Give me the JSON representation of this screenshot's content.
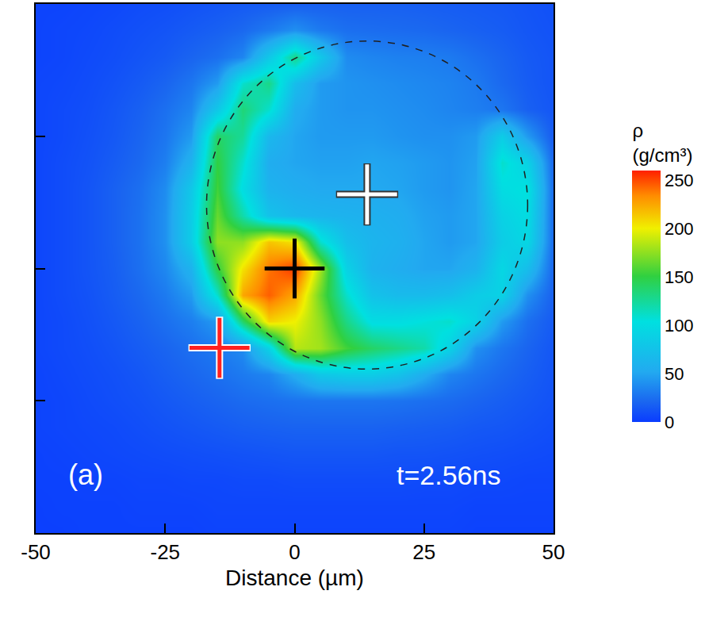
{
  "chart_data": {
    "type": "heatmap",
    "xlabel": "Distance (µm)",
    "panel_label": "(a)",
    "annotation": "t=2.56ns",
    "xlim": [
      -50,
      50
    ],
    "ylim": [
      -50,
      50
    ],
    "xticks": [
      -50,
      -25,
      0,
      25,
      50
    ],
    "yticks": [
      -50,
      -25,
      0,
      25,
      50
    ],
    "tick_labels": "x",
    "x": [
      -50,
      -45,
      -40,
      -35,
      -30,
      -25,
      -20,
      -15,
      -10,
      -5,
      0,
      5,
      10,
      15,
      20,
      25,
      30,
      35,
      40,
      45,
      50
    ],
    "y": [
      50,
      45,
      40,
      35,
      30,
      25,
      20,
      15,
      10,
      5,
      0,
      -5,
      -10,
      -15,
      -20,
      -25,
      -30,
      -35,
      -40,
      -45,
      -50
    ],
    "z": [
      [
        4,
        4,
        5,
        6,
        8,
        9,
        11,
        13,
        15,
        16,
        17,
        18,
        18,
        18,
        18,
        17,
        16,
        15,
        14,
        12,
        10
      ],
      [
        4,
        5,
        6,
        8,
        10,
        12,
        15,
        18,
        22,
        30,
        40,
        30,
        25,
        24,
        23,
        22,
        20,
        18,
        16,
        13,
        11
      ],
      [
        4,
        5,
        7,
        9,
        12,
        15,
        20,
        25,
        35,
        80,
        130,
        80,
        38,
        35,
        33,
        32,
        30,
        25,
        20,
        15,
        12
      ],
      [
        5,
        6,
        8,
        11,
        15,
        20,
        28,
        45,
        110,
        130,
        70,
        45,
        42,
        40,
        38,
        36,
        34,
        30,
        22,
        16,
        12
      ],
      [
        5,
        7,
        9,
        13,
        18,
        25,
        35,
        80,
        135,
        110,
        55,
        45,
        42,
        42,
        40,
        38,
        35,
        32,
        28,
        18,
        13
      ],
      [
        5,
        7,
        10,
        14,
        20,
        28,
        45,
        140,
        125,
        65,
        50,
        45,
        45,
        45,
        42,
        40,
        40,
        45,
        85,
        45,
        15
      ],
      [
        5,
        8,
        11,
        16,
        22,
        32,
        60,
        150,
        110,
        55,
        50,
        48,
        48,
        50,
        48,
        45,
        42,
        48,
        110,
        90,
        20
      ],
      [
        5,
        8,
        12,
        18,
        25,
        38,
        80,
        155,
        100,
        60,
        55,
        52,
        52,
        52,
        50,
        45,
        42,
        50,
        100,
        105,
        22
      ],
      [
        5,
        8,
        12,
        18,
        26,
        40,
        85,
        165,
        120,
        75,
        65,
        62,
        60,
        58,
        55,
        48,
        45,
        50,
        90,
        100,
        22
      ],
      [
        5,
        8,
        12,
        18,
        26,
        40,
        85,
        175,
        175,
        215,
        205,
        110,
        72,
        62,
        58,
        50,
        45,
        50,
        85,
        95,
        22
      ],
      [
        5,
        8,
        12,
        17,
        25,
        36,
        60,
        150,
        205,
        240,
        255,
        180,
        90,
        60,
        55,
        50,
        50,
        60,
        95,
        70,
        20
      ],
      [
        5,
        8,
        11,
        16,
        22,
        30,
        45,
        110,
        225,
        245,
        225,
        165,
        110,
        75,
        68,
        68,
        72,
        85,
        90,
        40,
        18
      ],
      [
        5,
        7,
        10,
        14,
        19,
        25,
        32,
        45,
        140,
        210,
        200,
        175,
        130,
        100,
        100,
        105,
        110,
        90,
        45,
        25,
        15
      ],
      [
        5,
        7,
        9,
        12,
        16,
        20,
        25,
        30,
        38,
        90,
        185,
        180,
        155,
        140,
        130,
        120,
        90,
        40,
        28,
        20,
        13
      ],
      [
        4,
        6,
        8,
        10,
        13,
        17,
        21,
        25,
        30,
        35,
        55,
        80,
        85,
        85,
        75,
        55,
        35,
        28,
        22,
        17,
        12
      ],
      [
        4,
        5,
        7,
        9,
        11,
        14,
        17,
        20,
        23,
        25,
        27,
        28,
        28,
        28,
        27,
        25,
        23,
        20,
        17,
        14,
        11
      ],
      [
        4,
        5,
        6,
        7,
        9,
        11,
        13,
        15,
        17,
        18,
        19,
        19,
        19,
        19,
        18,
        17,
        16,
        14,
        13,
        11,
        9
      ],
      [
        3,
        4,
        5,
        6,
        7,
        8,
        9,
        10,
        11,
        12,
        13,
        13,
        13,
        13,
        12,
        12,
        11,
        10,
        9,
        8,
        7
      ],
      [
        3,
        3,
        4,
        4,
        5,
        5,
        6,
        6,
        7,
        7,
        8,
        8,
        8,
        8,
        8,
        7,
        7,
        6,
        6,
        5,
        5
      ],
      [
        2,
        3,
        3,
        3,
        4,
        4,
        4,
        5,
        5,
        5,
        5,
        5,
        5,
        5,
        5,
        5,
        5,
        4,
        4,
        4,
        4
      ],
      [
        2,
        2,
        3,
        3,
        3,
        3,
        3,
        4,
        4,
        4,
        4,
        4,
        4,
        4,
        4,
        4,
        4,
        3,
        3,
        3,
        3
      ]
    ],
    "colorbar": {
      "title": [
        "ρ",
        "(g/cm³)"
      ],
      "range": [
        0,
        260
      ],
      "ticks": [
        0,
        50,
        100,
        150,
        200,
        250
      ]
    },
    "circle": {
      "center": [
        14,
        12
      ],
      "radius": 31,
      "line_style": "dashed"
    },
    "marker": "cross",
    "markers": [
      {
        "x": 0,
        "y": 0,
        "color": "#000000"
      },
      {
        "x": 14,
        "y": 14,
        "color": "#ffffff"
      },
      {
        "x": -14.5,
        "y": -15,
        "color": "#ff2020"
      }
    ]
  }
}
